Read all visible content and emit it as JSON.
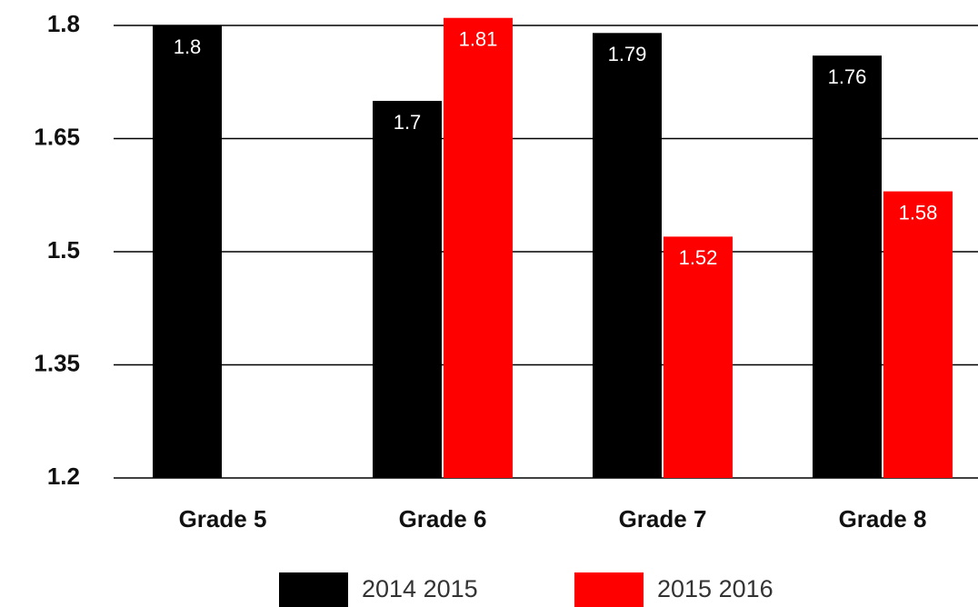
{
  "chart_data": {
    "type": "bar",
    "categories": [
      "Grade 5",
      "Grade 6",
      "Grade 7",
      "Grade 8"
    ],
    "series": [
      {
        "name": "2014 2015",
        "color": "#000000",
        "values": [
          1.8,
          1.7,
          1.79,
          1.76
        ]
      },
      {
        "name": "2015 2016",
        "color": "#ff0000",
        "values": [
          null,
          1.81,
          1.52,
          1.58
        ]
      }
    ],
    "ylim": [
      1.2,
      1.8
    ],
    "yticks": [
      1.2,
      1.35,
      1.5,
      1.65,
      1.8
    ],
    "grid": true,
    "legend": "bottom"
  }
}
